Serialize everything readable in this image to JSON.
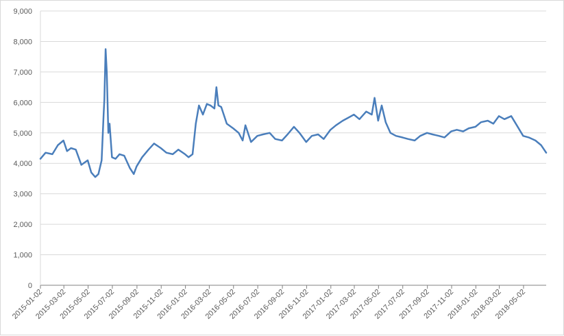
{
  "chart_data": {
    "type": "line",
    "title": "",
    "xlabel": "",
    "ylabel": "",
    "ylim": [
      0,
      9000
    ],
    "grid": true,
    "legend": "none",
    "line_color": "#4a7ebb",
    "y_ticks": [
      "0",
      "1,000",
      "2,000",
      "3,000",
      "4,000",
      "5,000",
      "6,000",
      "7,000",
      "8,000",
      "9,000"
    ],
    "x_tick_labels": [
      "2015-01-02",
      "2015-03-02",
      "2015-05-02",
      "2015-07-02",
      "2015-09-02",
      "2015-11-02",
      "2016-01-02",
      "2016-03-02",
      "2016-05-02",
      "2016-07-02",
      "2016-09-02",
      "2016-11-02",
      "2017-01-02",
      "2017-03-02",
      "2017-05-02",
      "2017-07-02",
      "2017-09-02",
      "2017-11-02",
      "2018-01-02",
      "2018-03-02",
      "2018-05-02"
    ],
    "x": [
      "2015-01-02",
      "2015-01-15",
      "2015-02-01",
      "2015-02-15",
      "2015-03-01",
      "2015-03-10",
      "2015-03-20",
      "2015-04-01",
      "2015-04-15",
      "2015-05-01",
      "2015-05-10",
      "2015-05-20",
      "2015-05-28",
      "2015-06-05",
      "2015-06-10",
      "2015-06-12",
      "2015-06-15",
      "2015-06-18",
      "2015-06-22",
      "2015-06-25",
      "2015-07-01",
      "2015-07-10",
      "2015-07-20",
      "2015-08-01",
      "2015-08-15",
      "2015-08-25",
      "2015-09-01",
      "2015-09-15",
      "2015-10-01",
      "2015-10-15",
      "2015-11-01",
      "2015-11-15",
      "2015-12-01",
      "2015-12-15",
      "2016-01-01",
      "2016-01-10",
      "2016-01-20",
      "2016-01-28",
      "2016-02-05",
      "2016-02-15",
      "2016-02-25",
      "2016-03-05",
      "2016-03-15",
      "2016-03-20",
      "2016-03-25",
      "2016-04-01",
      "2016-04-15",
      "2016-05-01",
      "2016-05-15",
      "2016-05-25",
      "2016-06-01",
      "2016-06-15",
      "2016-07-01",
      "2016-07-15",
      "2016-08-01",
      "2016-08-15",
      "2016-09-01",
      "2016-09-15",
      "2016-10-01",
      "2016-10-15",
      "2016-11-01",
      "2016-11-15",
      "2016-12-01",
      "2016-12-15",
      "2017-01-01",
      "2017-01-15",
      "2017-02-01",
      "2017-02-15",
      "2017-03-01",
      "2017-03-15",
      "2017-04-01",
      "2017-04-15",
      "2017-04-22",
      "2017-05-01",
      "2017-05-10",
      "2017-05-20",
      "2017-06-01",
      "2017-06-15",
      "2017-07-01",
      "2017-07-15",
      "2017-08-01",
      "2017-08-15",
      "2017-09-01",
      "2017-09-15",
      "2017-10-01",
      "2017-10-15",
      "2017-11-01",
      "2017-11-15",
      "2017-12-01",
      "2017-12-15",
      "2018-01-01",
      "2018-01-15",
      "2018-02-01",
      "2018-02-15",
      "2018-03-01",
      "2018-03-15",
      "2018-04-01",
      "2018-04-15",
      "2018-05-01",
      "2018-05-15",
      "2018-06-01",
      "2018-06-15",
      "2018-06-28"
    ],
    "series": [
      {
        "values": [
          4150,
          4350,
          4300,
          4600,
          4750,
          4400,
          4500,
          4450,
          3950,
          4100,
          3700,
          3550,
          3650,
          4100,
          5600,
          6100,
          7750,
          7000,
          5000,
          5300,
          4200,
          4150,
          4300,
          4250,
          3850,
          3650,
          3900,
          4200,
          4450,
          4650,
          4500,
          4350,
          4300,
          4450,
          4300,
          4200,
          4300,
          5300,
          5900,
          5600,
          5950,
          5900,
          5800,
          6500,
          5900,
          5850,
          5300,
          5150,
          5000,
          4750,
          5250,
          4700,
          4900,
          4950,
          5000,
          4800,
          4750,
          4950,
          5200,
          5000,
          4700,
          4900,
          4950,
          4800,
          5100,
          5250,
          5400,
          5500,
          5600,
          5450,
          5700,
          5600,
          6150,
          5400,
          5900,
          5350,
          5000,
          4900,
          4850,
          4800,
          4750,
          4900,
          5000,
          4950,
          4900,
          4850,
          5050,
          5100,
          5050,
          5150,
          5200,
          5350,
          5400,
          5300,
          5550,
          5450,
          5550,
          5250,
          4900,
          4850,
          4750,
          4600,
          4350
        ]
      }
    ]
  }
}
